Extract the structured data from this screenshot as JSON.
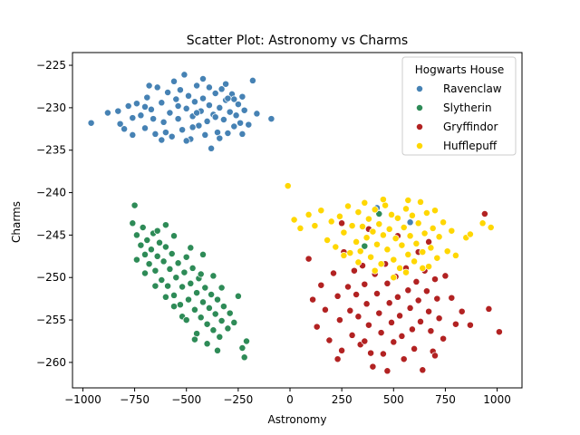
{
  "chart_data": {
    "type": "scatter",
    "title": "Scatter Plot: Astronomy vs Charms",
    "xlabel": "Astronomy",
    "ylabel": "Charms",
    "xlim": [
      -1050,
      1120
    ],
    "ylim": [
      -263,
      -223.5
    ],
    "xticks": [
      -1000,
      -750,
      -500,
      -250,
      0,
      250,
      500,
      750,
      1000
    ],
    "yticks": [
      -260,
      -255,
      -250,
      -245,
      -240,
      -235,
      -230,
      -225
    ],
    "grid": false,
    "legend": {
      "title": "Hogwarts House",
      "placement": "top-right"
    },
    "series": [
      {
        "name": "Ravenclaw",
        "color": "#4682b4",
        "points": [
          [
            -960,
            -231.8
          ],
          [
            -880,
            -230.6
          ],
          [
            -830,
            -230.4
          ],
          [
            -800,
            -232.5
          ],
          [
            -780,
            -229.8
          ],
          [
            -760,
            -231.2
          ],
          [
            -740,
            -229.5
          ],
          [
            -720,
            -230.9
          ],
          [
            -700,
            -232.4
          ],
          [
            -690,
            -228.8
          ],
          [
            -670,
            -230.2
          ],
          [
            -650,
            -233.1
          ],
          [
            -640,
            -227.6
          ],
          [
            -620,
            -229.4
          ],
          [
            -610,
            -231.7
          ],
          [
            -590,
            -228.2
          ],
          [
            -580,
            -230.6
          ],
          [
            -570,
            -233.4
          ],
          [
            -550,
            -229.0
          ],
          [
            -540,
            -231.3
          ],
          [
            -530,
            -227.9
          ],
          [
            -520,
            -232.6
          ],
          [
            -510,
            -226.1
          ],
          [
            -500,
            -230.1
          ],
          [
            -490,
            -228.6
          ],
          [
            -480,
            -233.7
          ],
          [
            -470,
            -231.0
          ],
          [
            -460,
            -229.3
          ],
          [
            -450,
            -227.4
          ],
          [
            -440,
            -232.1
          ],
          [
            -430,
            -230.4
          ],
          [
            -420,
            -228.9
          ],
          [
            -410,
            -233.2
          ],
          [
            -400,
            -231.6
          ],
          [
            -390,
            -229.7
          ],
          [
            -380,
            -234.8
          ],
          [
            -370,
            -230.8
          ],
          [
            -360,
            -228.3
          ],
          [
            -350,
            -232.9
          ],
          [
            -340,
            -230.0
          ],
          [
            -330,
            -227.8
          ],
          [
            -320,
            -231.4
          ],
          [
            -310,
            -229.1
          ],
          [
            -300,
            -233.0
          ],
          [
            -290,
            -230.5
          ],
          [
            -280,
            -228.4
          ],
          [
            -270,
            -232.2
          ],
          [
            -260,
            -230.9
          ],
          [
            -250,
            -229.6
          ],
          [
            -240,
            -231.8
          ],
          [
            -230,
            -228.7
          ],
          [
            -220,
            -230.3
          ],
          [
            -200,
            -232.0
          ],
          [
            -180,
            -226.8
          ],
          [
            -160,
            -230.7
          ],
          [
            -90,
            -231.3
          ],
          [
            -760,
            -233.2
          ],
          [
            -820,
            -231.9
          ],
          [
            -680,
            -227.4
          ],
          [
            -600,
            -232.9
          ],
          [
            -560,
            -226.9
          ],
          [
            -500,
            -233.9
          ],
          [
            -450,
            -230.6
          ],
          [
            -420,
            -226.6
          ],
          [
            -360,
            -231.1
          ],
          [
            -310,
            -227.2
          ],
          [
            -270,
            -229.0
          ],
          [
            -660,
            -231.3
          ],
          [
            -700,
            -229.9
          ],
          [
            -620,
            -233.8
          ],
          [
            -540,
            -229.8
          ],
          [
            -470,
            -232.3
          ],
          [
            -390,
            -227.6
          ],
          [
            -340,
            -233.6
          ],
          [
            -300,
            -228.9
          ],
          [
            -230,
            -233.1
          ],
          [
            580,
            -243.5
          ],
          [
            420,
            -241.8
          ]
        ]
      },
      {
        "name": "Slytherin",
        "color": "#2e8b57",
        "points": [
          [
            -750,
            -241.5
          ],
          [
            -760,
            -243.6
          ],
          [
            -740,
            -245.0
          ],
          [
            -720,
            -246.2
          ],
          [
            -710,
            -244.1
          ],
          [
            -700,
            -247.3
          ],
          [
            -690,
            -245.6
          ],
          [
            -680,
            -248.4
          ],
          [
            -670,
            -246.7
          ],
          [
            -660,
            -244.8
          ],
          [
            -650,
            -249.2
          ],
          [
            -640,
            -247.5
          ],
          [
            -630,
            -245.9
          ],
          [
            -620,
            -250.3
          ],
          [
            -610,
            -248.1
          ],
          [
            -600,
            -246.4
          ],
          [
            -590,
            -251.0
          ],
          [
            -580,
            -249.0
          ],
          [
            -570,
            -247.2
          ],
          [
            -560,
            -252.1
          ],
          [
            -550,
            -250.0
          ],
          [
            -540,
            -248.3
          ],
          [
            -530,
            -253.2
          ],
          [
            -520,
            -251.1
          ],
          [
            -510,
            -249.4
          ],
          [
            -500,
            -247.6
          ],
          [
            -490,
            -252.6
          ],
          [
            -480,
            -250.7
          ],
          [
            -470,
            -248.9
          ],
          [
            -460,
            -253.8
          ],
          [
            -450,
            -251.8
          ],
          [
            -440,
            -250.1
          ],
          [
            -430,
            -254.7
          ],
          [
            -420,
            -252.9
          ],
          [
            -410,
            -251.2
          ],
          [
            -400,
            -255.5
          ],
          [
            -390,
            -253.6
          ],
          [
            -380,
            -252.0
          ],
          [
            -370,
            -256.2
          ],
          [
            -360,
            -254.3
          ],
          [
            -350,
            -252.6
          ],
          [
            -340,
            -257.0
          ],
          [
            -330,
            -255.1
          ],
          [
            -320,
            -253.4
          ],
          [
            -300,
            -256.0
          ],
          [
            -290,
            -254.2
          ],
          [
            -270,
            -255.3
          ],
          [
            -250,
            -252.2
          ],
          [
            -230,
            -258.3
          ],
          [
            -220,
            -259.4
          ],
          [
            -210,
            -257.5
          ],
          [
            -400,
            -257.8
          ],
          [
            -450,
            -256.6
          ],
          [
            -520,
            -254.6
          ],
          [
            -600,
            -252.3
          ],
          [
            -650,
            -251.0
          ],
          [
            -700,
            -249.5
          ],
          [
            -740,
            -247.9
          ],
          [
            -560,
            -245.1
          ],
          [
            -480,
            -246.5
          ],
          [
            -420,
            -247.3
          ],
          [
            -370,
            -249.8
          ],
          [
            -330,
            -251.2
          ],
          [
            -600,
            -243.8
          ],
          [
            -640,
            -244.5
          ],
          [
            -500,
            -255.0
          ],
          [
            -460,
            -257.3
          ],
          [
            -350,
            -258.6
          ],
          [
            -560,
            -253.4
          ],
          [
            -430,
            -249.6
          ],
          [
            430,
            -242.5
          ],
          [
            360,
            -246.3
          ]
        ]
      },
      {
        "name": "Gryffindor",
        "color": "#b22222",
        "points": [
          [
            90,
            -247.8
          ],
          [
            110,
            -252.6
          ],
          [
            130,
            -255.8
          ],
          [
            150,
            -250.9
          ],
          [
            170,
            -253.8
          ],
          [
            190,
            -257.4
          ],
          [
            210,
            -249.5
          ],
          [
            230,
            -252.2
          ],
          [
            240,
            -255.0
          ],
          [
            250,
            -258.6
          ],
          [
            260,
            -247.0
          ],
          [
            280,
            -251.1
          ],
          [
            290,
            -253.9
          ],
          [
            300,
            -256.8
          ],
          [
            310,
            -249.2
          ],
          [
            320,
            -252.0
          ],
          [
            330,
            -254.6
          ],
          [
            340,
            -257.9
          ],
          [
            350,
            -248.6
          ],
          [
            360,
            -250.8
          ],
          [
            370,
            -253.1
          ],
          [
            380,
            -255.6
          ],
          [
            390,
            -258.9
          ],
          [
            400,
            -260.5
          ],
          [
            410,
            -249.6
          ],
          [
            420,
            -251.9
          ],
          [
            430,
            -254.2
          ],
          [
            440,
            -256.5
          ],
          [
            450,
            -259.0
          ],
          [
            460,
            -248.4
          ],
          [
            470,
            -250.7
          ],
          [
            480,
            -253.0
          ],
          [
            490,
            -255.3
          ],
          [
            500,
            -257.6
          ],
          [
            510,
            -249.9
          ],
          [
            520,
            -252.3
          ],
          [
            530,
            -254.5
          ],
          [
            540,
            -256.9
          ],
          [
            550,
            -259.6
          ],
          [
            560,
            -248.9
          ],
          [
            570,
            -251.5
          ],
          [
            580,
            -253.6
          ],
          [
            590,
            -256.1
          ],
          [
            600,
            -258.4
          ],
          [
            610,
            -250.5
          ],
          [
            620,
            -252.7
          ],
          [
            630,
            -255.2
          ],
          [
            640,
            -260.9
          ],
          [
            650,
            -249.2
          ],
          [
            660,
            -251.6
          ],
          [
            670,
            -254.0
          ],
          [
            680,
            -256.3
          ],
          [
            690,
            -258.7
          ],
          [
            700,
            -250.2
          ],
          [
            710,
            -252.5
          ],
          [
            720,
            -254.8
          ],
          [
            740,
            -257.2
          ],
          [
            750,
            -249.8
          ],
          [
            780,
            -252.4
          ],
          [
            800,
            -255.5
          ],
          [
            830,
            -254.0
          ],
          [
            870,
            -255.6
          ],
          [
            940,
            -242.5
          ],
          [
            960,
            -253.7
          ],
          [
            1010,
            -256.4
          ],
          [
            250,
            -243.6
          ],
          [
            380,
            -244.3
          ],
          [
            520,
            -245.1
          ],
          [
            620,
            -247.0
          ],
          [
            670,
            -245.8
          ],
          [
            230,
            -259.6
          ],
          [
            470,
            -261.0
          ],
          [
            360,
            -257.5
          ],
          [
            700,
            -259.2
          ]
        ]
      },
      {
        "name": "Hufflepuff",
        "color": "#ffd700",
        "points": [
          [
            -10,
            -239.2
          ],
          [
            20,
            -243.2
          ],
          [
            50,
            -244.2
          ],
          [
            90,
            -242.6
          ],
          [
            120,
            -243.9
          ],
          [
            150,
            -242.1
          ],
          [
            180,
            -245.6
          ],
          [
            200,
            -243.4
          ],
          [
            220,
            -246.4
          ],
          [
            240,
            -242.8
          ],
          [
            260,
            -244.7
          ],
          [
            280,
            -241.6
          ],
          [
            290,
            -247.1
          ],
          [
            300,
            -243.9
          ],
          [
            320,
            -245.8
          ],
          [
            330,
            -242.3
          ],
          [
            340,
            -246.9
          ],
          [
            350,
            -244.0
          ],
          [
            360,
            -241.2
          ],
          [
            370,
            -245.3
          ],
          [
            380,
            -243.1
          ],
          [
            390,
            -247.6
          ],
          [
            400,
            -244.6
          ],
          [
            410,
            -242.0
          ],
          [
            420,
            -246.1
          ],
          [
            430,
            -243.7
          ],
          [
            440,
            -248.4
          ],
          [
            450,
            -245.0
          ],
          [
            460,
            -241.5
          ],
          [
            470,
            -246.7
          ],
          [
            480,
            -244.3
          ],
          [
            490,
            -242.6
          ],
          [
            500,
            -247.9
          ],
          [
            510,
            -245.4
          ],
          [
            520,
            -243.0
          ],
          [
            530,
            -248.9
          ],
          [
            540,
            -246.2
          ],
          [
            550,
            -244.1
          ],
          [
            560,
            -241.9
          ],
          [
            570,
            -247.3
          ],
          [
            580,
            -245.1
          ],
          [
            590,
            -242.7
          ],
          [
            600,
            -248.1
          ],
          [
            610,
            -246.0
          ],
          [
            620,
            -243.6
          ],
          [
            630,
            -241.1
          ],
          [
            640,
            -247.0
          ],
          [
            650,
            -244.8
          ],
          [
            660,
            -242.4
          ],
          [
            670,
            -248.7
          ],
          [
            680,
            -246.5
          ],
          [
            690,
            -244.2
          ],
          [
            700,
            -242.1
          ],
          [
            710,
            -247.7
          ],
          [
            720,
            -245.2
          ],
          [
            740,
            -243.5
          ],
          [
            760,
            -246.9
          ],
          [
            780,
            -244.5
          ],
          [
            800,
            -247.4
          ],
          [
            850,
            -245.3
          ],
          [
            870,
            -244.9
          ],
          [
            930,
            -243.6
          ],
          [
            970,
            -244.1
          ],
          [
            410,
            -249.2
          ],
          [
            500,
            -250.0
          ],
          [
            560,
            -249.4
          ],
          [
            640,
            -248.9
          ],
          [
            330,
            -248.2
          ],
          [
            260,
            -247.4
          ],
          [
            570,
            -240.9
          ],
          [
            450,
            -240.8
          ]
        ]
      }
    ]
  }
}
